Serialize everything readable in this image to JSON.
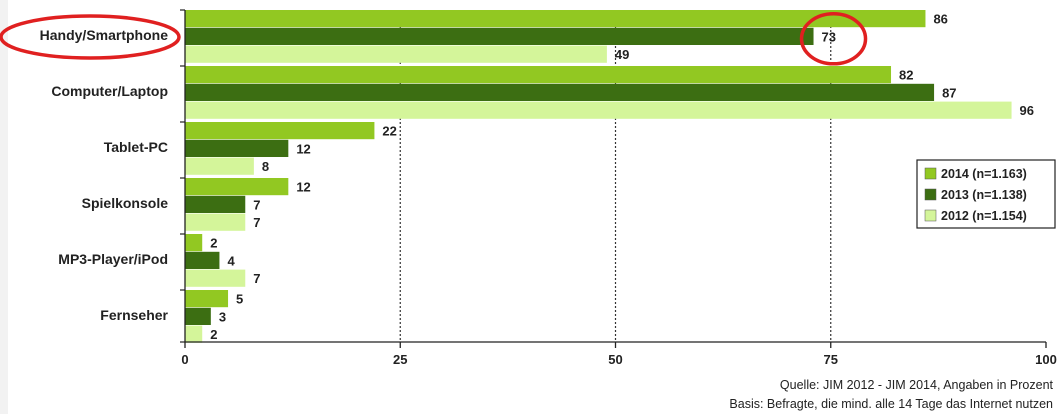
{
  "chart_data": {
    "type": "bar",
    "orientation": "horizontal",
    "categories": [
      "Handy/Smartphone",
      "Computer/Laptop",
      "Tablet-PC",
      "Spielkonsole",
      "MP3-Player/iPod",
      "Fernseher"
    ],
    "series": [
      {
        "name": "2014 (n=1.163)",
        "values": [
          86,
          82,
          22,
          12,
          2,
          5
        ]
      },
      {
        "name": "2013 (n=1.138)",
        "values": [
          73,
          87,
          12,
          7,
          4,
          3
        ]
      },
      {
        "name": "2012 (n=1.154)",
        "values": [
          49,
          96,
          8,
          7,
          7,
          2
        ]
      }
    ],
    "xlim": [
      0,
      100
    ],
    "xticks": [
      "0",
      "25",
      "50",
      "75",
      "100"
    ],
    "grid": "vertical dotted lines at 25, 50, 75",
    "legend_position": "right",
    "colors": {
      "2014 (n=1.163)": "#92c822",
      "2013 (n=1.138)": "#3c6e12",
      "2012 (n=1.154)": "#d4f59a"
    },
    "annotations": {
      "highlight_category": "Handy/Smartphone",
      "highlight_value": "73",
      "highlight_color": "#e02020"
    }
  },
  "footer": {
    "source": "Quelle: JIM 2012 - JIM 2014, Angaben in Prozent",
    "basis": "Basis: Befragte, die mind. alle 14 Tage das Internet nutzen"
  }
}
